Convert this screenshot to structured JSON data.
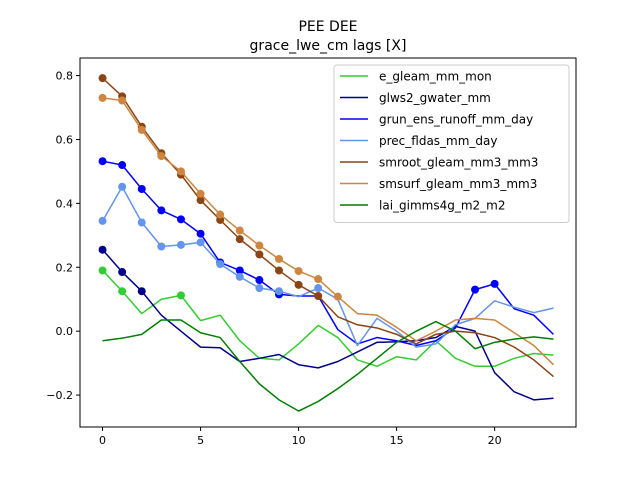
{
  "chart_data": {
    "type": "line",
    "title": "PEE DEE",
    "subtitle": "grace_lwe_cm lags [X]",
    "xlabel": "",
    "ylabel": "",
    "xlim": [
      -1.15,
      24.15
    ],
    "ylim": [
      -0.3,
      0.855
    ],
    "xticks": [
      0,
      5,
      10,
      15,
      20
    ],
    "yticks": [
      -0.2,
      0.0,
      0.2,
      0.4,
      0.6,
      0.8
    ],
    "ytick_labels": [
      "−0.2",
      "0.0",
      "0.2",
      "0.4",
      "0.6",
      "0.8"
    ],
    "grid": false,
    "legend_position": "top-right",
    "x": [
      0,
      1,
      2,
      3,
      4,
      5,
      6,
      7,
      8,
      9,
      10,
      11,
      12,
      13,
      14,
      15,
      16,
      17,
      18,
      19,
      20,
      21,
      22,
      23
    ],
    "series": [
      {
        "name": "e_gleam_mm_mon",
        "color": "#32cd32",
        "values": [
          0.19,
          0.125,
          0.055,
          0.1,
          0.112,
          0.033,
          0.05,
          -0.03,
          -0.085,
          -0.09,
          -0.04,
          0.018,
          -0.02,
          -0.09,
          -0.11,
          -0.08,
          -0.09,
          -0.03,
          -0.085,
          -0.11,
          -0.11,
          -0.085,
          -0.07,
          -0.075
        ],
        "markers": [
          0,
          1,
          4
        ]
      },
      {
        "name": "glws2_gwater_mm",
        "color": "#00008b",
        "values": [
          0.255,
          0.185,
          0.125,
          0.05,
          0.0,
          -0.05,
          -0.052,
          -0.095,
          -0.085,
          -0.073,
          -0.105,
          -0.115,
          -0.095,
          -0.065,
          -0.035,
          -0.033,
          -0.03,
          -0.02,
          0.015,
          0.0,
          -0.13,
          -0.19,
          -0.215,
          -0.21
        ],
        "markers": [
          0,
          1,
          2
        ]
      },
      {
        "name": "grun_ens_runoff_mm_day",
        "color": "#0000ff",
        "values": [
          0.532,
          0.52,
          0.445,
          0.378,
          0.35,
          0.305,
          0.215,
          0.19,
          0.16,
          0.115,
          0.11,
          0.11,
          0.005,
          -0.04,
          -0.02,
          -0.03,
          -0.045,
          -0.03,
          0.01,
          0.13,
          0.148,
          0.07,
          0.05,
          -0.01
        ],
        "markers": [
          0,
          1,
          2,
          3,
          4,
          5,
          6,
          7,
          8,
          9,
          19,
          20
        ]
      },
      {
        "name": "prec_fldas_mm_day",
        "color": "#6495ed",
        "values": [
          0.345,
          0.452,
          0.34,
          0.265,
          0.27,
          0.278,
          0.21,
          0.17,
          0.135,
          0.125,
          0.108,
          0.135,
          0.1,
          -0.045,
          0.04,
          0.0,
          -0.05,
          -0.04,
          0.02,
          0.04,
          0.095,
          0.075,
          0.058,
          0.072
        ],
        "markers": [
          0,
          1,
          2,
          3,
          4,
          5,
          6,
          7,
          8,
          9,
          11
        ]
      },
      {
        "name": "smroot_gleam_mm3_mm3",
        "color": "#8b4513",
        "values": [
          0.792,
          0.735,
          0.64,
          0.557,
          0.49,
          0.41,
          0.348,
          0.288,
          0.24,
          0.19,
          0.145,
          0.11,
          0.045,
          0.02,
          0.01,
          -0.01,
          -0.04,
          -0.01,
          0.0,
          -0.005,
          -0.02,
          -0.05,
          -0.09,
          -0.142
        ],
        "markers": [
          0,
          1,
          2,
          3,
          4,
          5,
          6,
          7,
          8,
          9,
          10,
          11
        ]
      },
      {
        "name": "smsurf_gleam_mm3_mm3",
        "color": "#cd853f",
        "values": [
          0.73,
          0.722,
          0.63,
          0.548,
          0.5,
          0.43,
          0.365,
          0.315,
          0.268,
          0.226,
          0.188,
          0.163,
          0.108,
          0.055,
          0.05,
          0.012,
          -0.03,
          0.0,
          0.035,
          0.04,
          0.035,
          -0.005,
          -0.045,
          -0.105
        ],
        "markers": [
          0,
          1,
          2,
          3,
          4,
          5,
          6,
          7,
          8,
          9,
          10,
          11,
          12
        ]
      },
      {
        "name": "lai_gimms4g_m2_m2",
        "color": "#008000",
        "values": [
          -0.03,
          -0.022,
          -0.01,
          0.035,
          0.035,
          -0.005,
          -0.02,
          -0.095,
          -0.165,
          -0.215,
          -0.25,
          -0.22,
          -0.18,
          -0.135,
          -0.085,
          -0.035,
          0.0,
          0.03,
          0.0,
          -0.055,
          -0.035,
          -0.025,
          -0.018,
          -0.025
        ],
        "markers": []
      }
    ]
  }
}
